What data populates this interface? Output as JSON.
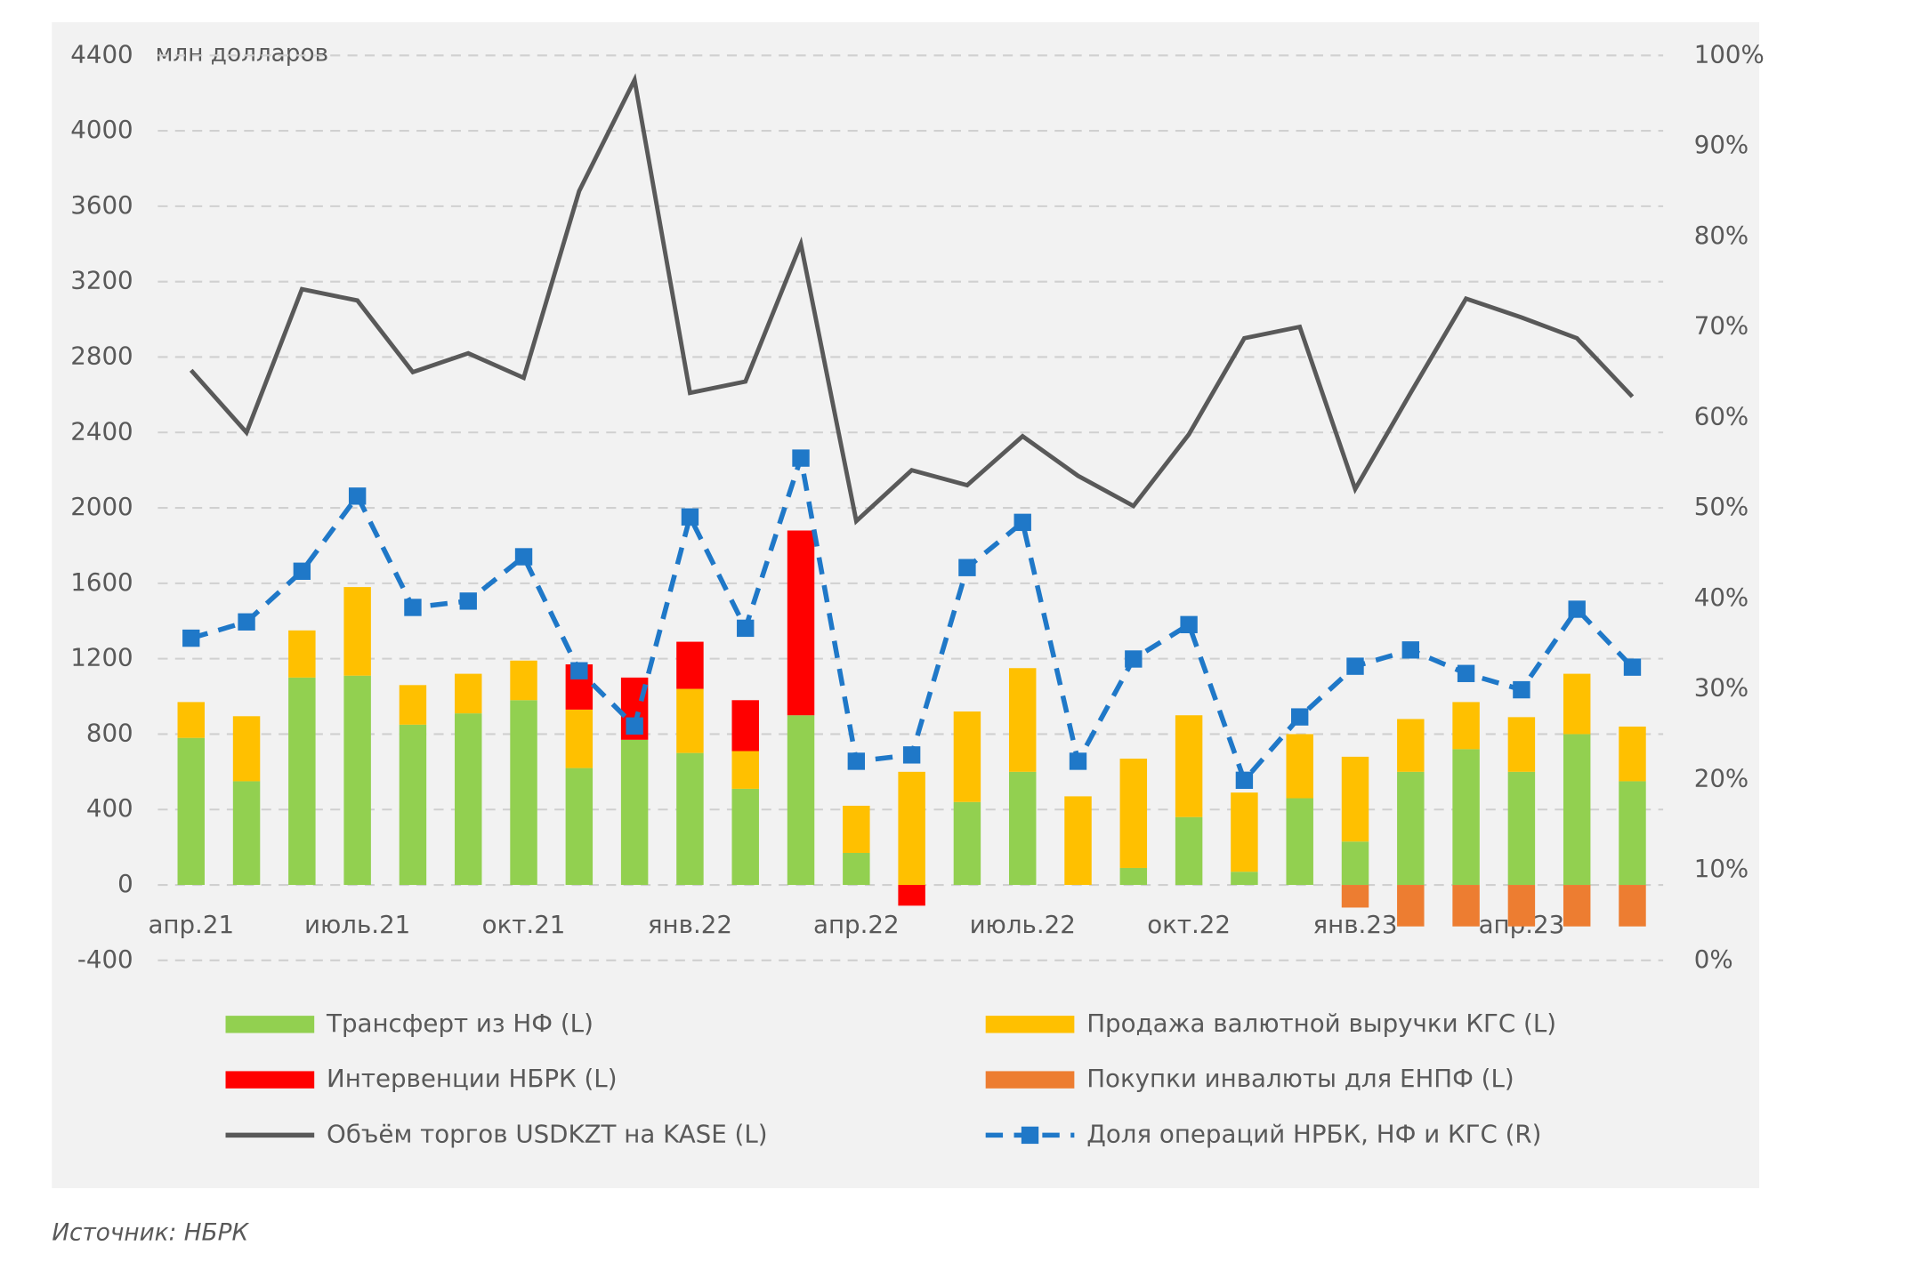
{
  "chart_data": {
    "type": "bar",
    "y_axis_label": "млн долларов",
    "source": "Источник: НБРК",
    "categories": [
      "апр.21",
      null,
      null,
      "июль.21",
      null,
      null,
      "окт.21",
      null,
      null,
      "янв.22",
      null,
      null,
      "апр.22",
      null,
      null,
      "июль.22",
      null,
      null,
      "окт.22",
      null,
      null,
      "янв.23",
      null,
      null,
      "апр.23",
      null,
      null
    ],
    "ylim": [
      -400,
      4400
    ],
    "yticks": [
      -400,
      0,
      400,
      800,
      1200,
      1600,
      2000,
      2400,
      2800,
      3200,
      3600,
      4000,
      4400
    ],
    "y2lim": [
      0,
      100
    ],
    "y2ticks": [
      {
        "value": 0,
        "label": "0%"
      },
      {
        "value": 10,
        "label": "10%"
      },
      {
        "value": 20,
        "label": "20%"
      },
      {
        "value": 30,
        "label": "30%"
      },
      {
        "value": 40,
        "label": "40%"
      },
      {
        "value": 50,
        "label": "50%"
      },
      {
        "value": 60,
        "label": "60%"
      },
      {
        "value": 70,
        "label": "70%"
      },
      {
        "value": 80,
        "label": "80%"
      },
      {
        "value": 90,
        "label": "90%"
      },
      {
        "value": 100,
        "label": "100%"
      }
    ],
    "grid": true,
    "series": [
      {
        "name": "Трансферт из НФ (L)",
        "type": "bar",
        "color": "#92d050",
        "values": [
          780,
          550,
          1100,
          1110,
          850,
          910,
          980,
          620,
          770,
          700,
          510,
          900,
          170,
          0,
          440,
          600,
          0,
          90,
          360,
          70,
          460,
          230,
          600,
          720,
          600,
          800,
          550
        ]
      },
      {
        "name": "Продажа валютной выручки КГС (L)",
        "type": "bar",
        "color": "#ffc000",
        "values": [
          190,
          345,
          250,
          470,
          210,
          210,
          210,
          310,
          0,
          340,
          200,
          0,
          250,
          600,
          480,
          550,
          470,
          580,
          540,
          420,
          340,
          450,
          280,
          250,
          290,
          320,
          290
        ]
      },
      {
        "name": "Интервенции НБРК (L)",
        "type": "bar",
        "color": "#ff0000",
        "values": [
          0,
          0,
          0,
          0,
          0,
          0,
          0,
          240,
          330,
          250,
          270,
          980,
          0,
          -110,
          0,
          0,
          0,
          0,
          0,
          0,
          0,
          0,
          0,
          0,
          0,
          0,
          0
        ]
      },
      {
        "name": "Покупки инвалюты для ЕНПФ (L)",
        "type": "bar",
        "color": "#ed7d31",
        "values": [
          0,
          0,
          0,
          0,
          0,
          0,
          0,
          0,
          0,
          0,
          0,
          0,
          0,
          0,
          0,
          0,
          0,
          0,
          0,
          0,
          0,
          -120,
          -220,
          -220,
          -220,
          -220,
          -220
        ]
      },
      {
        "name": "Объём торгов USDKZT на KASE (L)",
        "type": "line",
        "color": "#595959",
        "values": [
          2730,
          2400,
          3160,
          3100,
          2720,
          2820,
          2690,
          3680,
          4270,
          2610,
          2670,
          3400,
          1930,
          2200,
          2120,
          2380,
          2170,
          2010,
          2390,
          2900,
          2960,
          2100,
          2610,
          3110,
          3010,
          2900,
          2590
        ]
      },
      {
        "name": "Доля операций НРБК, НФ и КГС (R)",
        "type": "line",
        "axis": "y2",
        "dashed": true,
        "marker": "square",
        "color": "#1f78c8",
        "values": [
          35.6,
          37.4,
          43.0,
          51.3,
          39.0,
          39.7,
          44.6,
          32.0,
          25.9,
          49.0,
          36.7,
          55.5,
          22.0,
          22.7,
          43.4,
          48.4,
          22.0,
          33.3,
          37.1,
          19.9,
          26.9,
          32.5,
          34.3,
          31.7,
          29.9,
          38.8,
          32.4
        ]
      }
    ]
  }
}
